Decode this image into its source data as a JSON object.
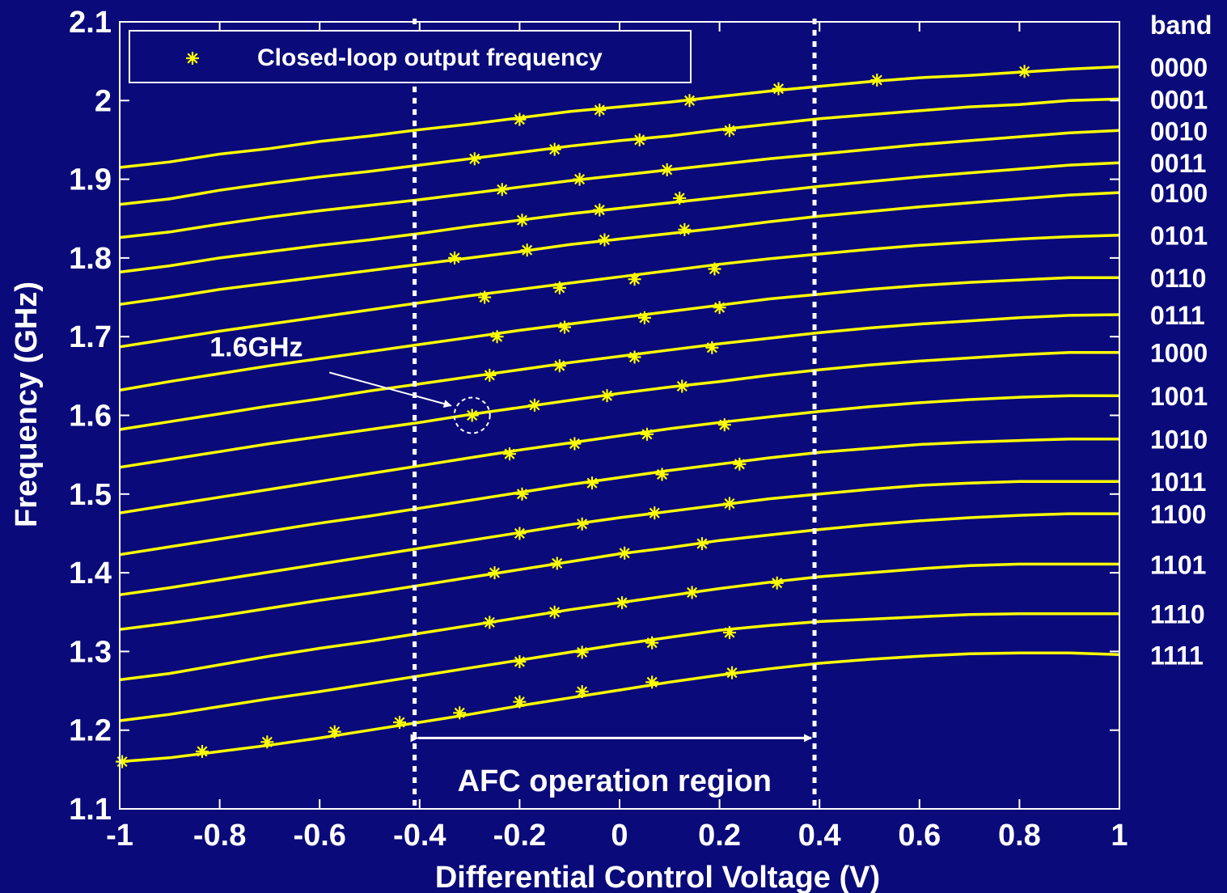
{
  "chart_data": {
    "type": "line",
    "xlabel": "Differential Control Voltage (V)",
    "ylabel": "Frequency (GHz)",
    "xlim": [
      -1,
      1
    ],
    "ylim": [
      1.1,
      2.1
    ],
    "x_ticks": [
      -1,
      -0.8,
      -0.6,
      -0.4,
      -0.2,
      0,
      0.2,
      0.4,
      0.6,
      0.8,
      1
    ],
    "x_tick_labels": [
      "-1",
      "-0.8",
      "-0.6",
      "-0.4",
      "-0.2",
      "0",
      "0.2",
      "0.4",
      "0.6",
      "0.8",
      "1"
    ],
    "y_ticks": [
      1.1,
      1.2,
      1.3,
      1.4,
      1.5,
      1.6,
      1.7,
      1.8,
      1.9,
      2,
      2.1
    ],
    "y_tick_labels": [
      "1.1",
      "1.2",
      "1.3",
      "1.4",
      "1.5",
      "1.6",
      "1.7",
      "1.8",
      "1.9",
      "2",
      "2.1"
    ],
    "grid": false,
    "line_color": "#ffff00",
    "background_color": "#0a0a7a",
    "band_header": "band",
    "legend": {
      "position": "top-left",
      "marker": "*",
      "label": "Closed-loop output frequency"
    },
    "x": [
      -1,
      -0.9,
      -0.8,
      -0.7,
      -0.6,
      -0.5,
      -0.4,
      -0.3,
      -0.2,
      -0.1,
      0,
      0.1,
      0.2,
      0.3,
      0.4,
      0.5,
      0.6,
      0.7,
      0.8,
      0.9,
      1
    ],
    "series": [
      {
        "name": "0000",
        "values": [
          1.915,
          1.922,
          1.932,
          1.939,
          1.948,
          1.955,
          1.963,
          1.97,
          1.978,
          1.986,
          1.992,
          1.998,
          2.005,
          2.012,
          2.018,
          2.024,
          2.029,
          2.032,
          2.036,
          2.04,
          2.043
        ]
      },
      {
        "name": "0001",
        "values": [
          1.868,
          1.875,
          1.886,
          1.895,
          1.903,
          1.91,
          1.918,
          1.926,
          1.934,
          1.942,
          1.949,
          1.955,
          1.963,
          1.97,
          1.977,
          1.982,
          1.987,
          1.992,
          1.995,
          2.0,
          2.002
        ]
      },
      {
        "name": "0010",
        "values": [
          1.826,
          1.833,
          1.843,
          1.852,
          1.86,
          1.867,
          1.874,
          1.882,
          1.89,
          1.898,
          1.905,
          1.912,
          1.919,
          1.926,
          1.932,
          1.938,
          1.944,
          1.949,
          1.954,
          1.959,
          1.962
        ]
      },
      {
        "name": "0011",
        "values": [
          1.782,
          1.79,
          1.8,
          1.808,
          1.816,
          1.823,
          1.831,
          1.84,
          1.848,
          1.856,
          1.863,
          1.87,
          1.877,
          1.884,
          1.891,
          1.897,
          1.903,
          1.908,
          1.913,
          1.918,
          1.921
        ]
      },
      {
        "name": "0100",
        "values": [
          1.741,
          1.75,
          1.76,
          1.768,
          1.776,
          1.784,
          1.792,
          1.8,
          1.808,
          1.817,
          1.824,
          1.831,
          1.838,
          1.846,
          1.853,
          1.859,
          1.865,
          1.87,
          1.875,
          1.88,
          1.883
        ]
      },
      {
        "name": "0101",
        "values": [
          1.687,
          1.697,
          1.707,
          1.716,
          1.725,
          1.734,
          1.743,
          1.752,
          1.76,
          1.768,
          1.776,
          1.784,
          1.792,
          1.799,
          1.805,
          1.811,
          1.816,
          1.82,
          1.824,
          1.827,
          1.829
        ]
      },
      {
        "name": "0110",
        "values": [
          1.632,
          1.643,
          1.653,
          1.663,
          1.672,
          1.681,
          1.69,
          1.699,
          1.708,
          1.716,
          1.724,
          1.732,
          1.74,
          1.748,
          1.754,
          1.76,
          1.765,
          1.769,
          1.772,
          1.775,
          1.775
        ]
      },
      {
        "name": "0111",
        "values": [
          1.582,
          1.592,
          1.602,
          1.612,
          1.621,
          1.631,
          1.64,
          1.649,
          1.658,
          1.667,
          1.675,
          1.683,
          1.691,
          1.698,
          1.705,
          1.711,
          1.716,
          1.72,
          1.724,
          1.727,
          1.728
        ]
      },
      {
        "name": "1000",
        "values": [
          1.534,
          1.544,
          1.554,
          1.564,
          1.573,
          1.582,
          1.591,
          1.601,
          1.61,
          1.619,
          1.628,
          1.636,
          1.643,
          1.651,
          1.658,
          1.664,
          1.669,
          1.673,
          1.677,
          1.68,
          1.68
        ]
      },
      {
        "name": "1001",
        "values": [
          1.476,
          1.486,
          1.496,
          1.506,
          1.516,
          1.526,
          1.536,
          1.546,
          1.556,
          1.565,
          1.574,
          1.583,
          1.591,
          1.598,
          1.605,
          1.611,
          1.616,
          1.62,
          1.623,
          1.625,
          1.625
        ]
      },
      {
        "name": "1010",
        "values": [
          1.423,
          1.433,
          1.443,
          1.453,
          1.463,
          1.472,
          1.482,
          1.492,
          1.502,
          1.512,
          1.521,
          1.53,
          1.538,
          1.546,
          1.553,
          1.558,
          1.563,
          1.566,
          1.568,
          1.57,
          1.57
        ]
      },
      {
        "name": "1011",
        "values": [
          1.372,
          1.381,
          1.391,
          1.401,
          1.411,
          1.421,
          1.431,
          1.441,
          1.451,
          1.461,
          1.47,
          1.478,
          1.486,
          1.494,
          1.5,
          1.506,
          1.511,
          1.514,
          1.516,
          1.516,
          1.516
        ]
      },
      {
        "name": "1100",
        "values": [
          1.328,
          1.336,
          1.345,
          1.355,
          1.365,
          1.374,
          1.384,
          1.394,
          1.404,
          1.414,
          1.424,
          1.432,
          1.441,
          1.448,
          1.455,
          1.461,
          1.466,
          1.47,
          1.473,
          1.475,
          1.475
        ]
      },
      {
        "name": "1101",
        "values": [
          1.264,
          1.272,
          1.283,
          1.294,
          1.304,
          1.313,
          1.323,
          1.333,
          1.343,
          1.353,
          1.362,
          1.371,
          1.38,
          1.388,
          1.395,
          1.4,
          1.405,
          1.409,
          1.411,
          1.411,
          1.411
        ]
      },
      {
        "name": "1110",
        "values": [
          1.212,
          1.22,
          1.23,
          1.24,
          1.249,
          1.259,
          1.269,
          1.279,
          1.289,
          1.299,
          1.309,
          1.318,
          1.327,
          1.333,
          1.338,
          1.341,
          1.344,
          1.347,
          1.348,
          1.348,
          1.348
        ]
      },
      {
        "name": "1111",
        "values": [
          1.16,
          1.165,
          1.173,
          1.181,
          1.19,
          1.2,
          1.21,
          1.22,
          1.231,
          1.241,
          1.251,
          1.261,
          1.27,
          1.278,
          1.285,
          1.29,
          1.294,
          1.297,
          1.298,
          1.298,
          1.296
        ]
      }
    ],
    "closed_loop_points": [
      [
        0.81,
        2.037
      ],
      [
        0.515,
        2.026
      ],
      [
        0.318,
        2.015
      ],
      [
        0.14,
        2.0
      ],
      [
        -0.04,
        1.988
      ],
      [
        -0.2,
        1.976
      ],
      [
        0.22,
        1.962
      ],
      [
        0.04,
        1.95
      ],
      [
        -0.13,
        1.938
      ],
      [
        -0.29,
        1.926
      ],
      [
        0.095,
        1.912
      ],
      [
        -0.08,
        1.9
      ],
      [
        -0.235,
        1.887
      ],
      [
        0.12,
        1.876
      ],
      [
        -0.04,
        1.861
      ],
      [
        -0.195,
        1.848
      ],
      [
        0.13,
        1.836
      ],
      [
        -0.03,
        1.823
      ],
      [
        -0.185,
        1.81
      ],
      [
        -0.33,
        1.8
      ],
      [
        0.19,
        1.786
      ],
      [
        0.03,
        1.773
      ],
      [
        -0.12,
        1.762
      ],
      [
        -0.27,
        1.75
      ],
      [
        0.2,
        1.737
      ],
      [
        0.05,
        1.724
      ],
      [
        -0.11,
        1.712
      ],
      [
        -0.245,
        1.7
      ],
      [
        0.185,
        1.686
      ],
      [
        0.03,
        1.674
      ],
      [
        -0.12,
        1.663
      ],
      [
        -0.26,
        1.651
      ],
      [
        0.125,
        1.637
      ],
      [
        -0.025,
        1.625
      ],
      [
        -0.17,
        1.613
      ],
      [
        -0.295,
        1.6
      ],
      [
        0.21,
        1.588
      ],
      [
        0.055,
        1.576
      ],
      [
        -0.09,
        1.564
      ],
      [
        -0.22,
        1.551
      ],
      [
        0.24,
        1.538
      ],
      [
        0.085,
        1.525
      ],
      [
        -0.055,
        1.514
      ],
      [
        -0.195,
        1.5
      ],
      [
        0.22,
        1.488
      ],
      [
        0.07,
        1.476
      ],
      [
        -0.075,
        1.462
      ],
      [
        -0.2,
        1.45
      ],
      [
        0.165,
        1.437
      ],
      [
        0.01,
        1.425
      ],
      [
        -0.125,
        1.412
      ],
      [
        -0.25,
        1.4
      ],
      [
        0.315,
        1.387
      ],
      [
        0.145,
        1.375
      ],
      [
        0.005,
        1.362
      ],
      [
        -0.13,
        1.35
      ],
      [
        -0.26,
        1.337
      ],
      [
        0.22,
        1.324
      ],
      [
        0.065,
        1.311
      ],
      [
        -0.075,
        1.299
      ],
      [
        -0.2,
        1.287
      ],
      [
        0.225,
        1.273
      ],
      [
        0.065,
        1.261
      ],
      [
        -0.075,
        1.249
      ],
      [
        -0.2,
        1.236
      ],
      [
        -0.32,
        1.222
      ],
      [
        -0.44,
        1.21
      ],
      [
        -0.57,
        1.198
      ],
      [
        -0.705,
        1.185
      ],
      [
        -0.835,
        1.173
      ],
      [
        -0.995,
        1.16
      ]
    ],
    "vertical_markers": [
      -0.41,
      0.39
    ],
    "region": {
      "from": -0.41,
      "to": 0.39,
      "y": 1.19,
      "label": "AFC operation region",
      "label_y": 1.135
    },
    "annotation": {
      "label": "1.6GHz",
      "text_x": -0.82,
      "text_y": 1.675,
      "target_x": -0.295,
      "target_y": 1.6
    }
  }
}
